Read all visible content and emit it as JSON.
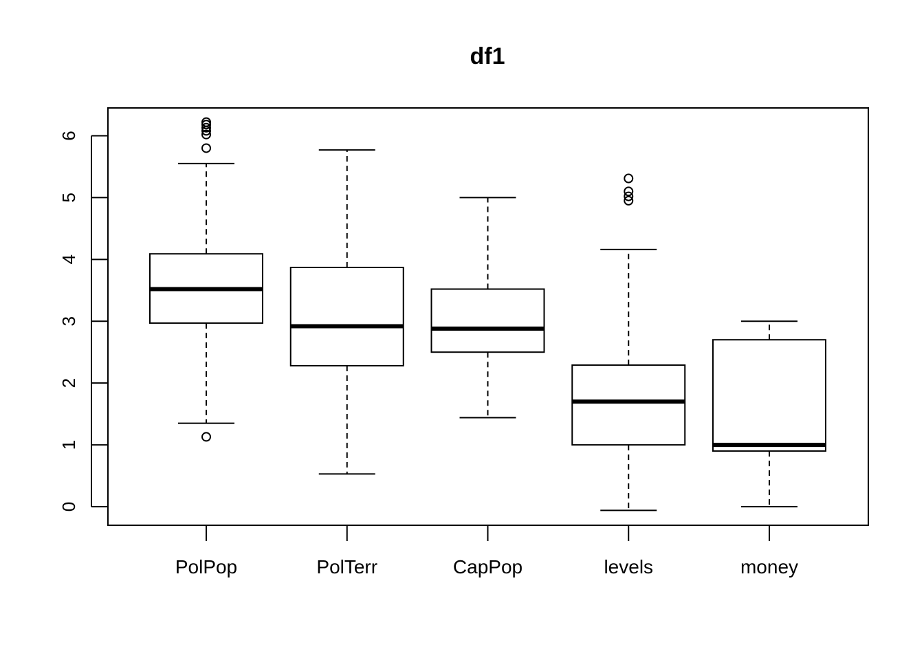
{
  "chart_data": {
    "type": "boxplot",
    "title": "df1",
    "xlabel": "",
    "ylabel": "",
    "ylim": [
      -0.3,
      6.45
    ],
    "yticks": [
      0,
      1,
      2,
      3,
      4,
      5,
      6
    ],
    "categories": [
      "PolPop",
      "PolTerr",
      "CapPop",
      "levels",
      "money"
    ],
    "boxes": [
      {
        "name": "PolPop",
        "whisker_low": 1.35,
        "q1": 2.97,
        "median": 3.52,
        "q3": 4.09,
        "whisker_high": 5.55,
        "outliers": [
          1.13,
          5.8,
          6.02,
          6.08,
          6.13,
          6.18,
          6.22
        ]
      },
      {
        "name": "PolTerr",
        "whisker_low": 0.53,
        "q1": 2.28,
        "median": 2.92,
        "q3": 3.87,
        "whisker_high": 5.77,
        "outliers": []
      },
      {
        "name": "CapPop",
        "whisker_low": 1.44,
        "q1": 2.5,
        "median": 2.88,
        "q3": 3.52,
        "whisker_high": 5.0,
        "outliers": []
      },
      {
        "name": "levels",
        "whisker_low": -0.06,
        "q1": 1.0,
        "median": 1.7,
        "q3": 2.29,
        "whisker_high": 4.16,
        "outliers": [
          4.95,
          5.02,
          5.1,
          5.31
        ]
      },
      {
        "name": "money",
        "whisker_low": 0.0,
        "q1": 0.9,
        "median": 1.0,
        "q3": 2.7,
        "whisker_high": 3.0,
        "outliers": []
      }
    ],
    "grid": false,
    "legend": "none",
    "colors": {
      "box_fill": "#ffffff",
      "stroke": "#000000"
    }
  }
}
